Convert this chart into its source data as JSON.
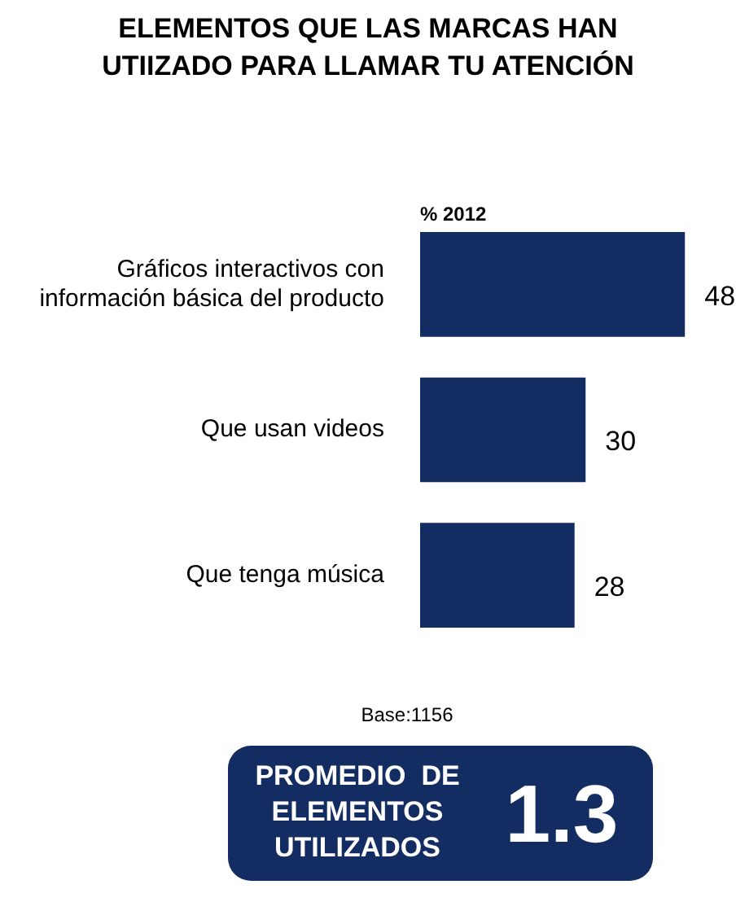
{
  "chart_data": {
    "type": "bar",
    "orientation": "horizontal",
    "title": "ELEMENTOS QUE LAS MARCAS HAN UTIIZADO PARA LLAMAR TU ATENCIÓN",
    "categories": [
      "Gráficos interactivos con información básica del producto",
      "Que usan videos",
      "Que tenga música"
    ],
    "series": [
      {
        "name": "% 2012",
        "color": "#132c62",
        "values": [
          48,
          30,
          28
        ]
      }
    ],
    "data_labels": true,
    "legend": false,
    "annotations": [
      "Base:1156",
      "PROMEDIO  DE ELEMENTOS UTILIZADOS",
      "1.3"
    ]
  }
}
